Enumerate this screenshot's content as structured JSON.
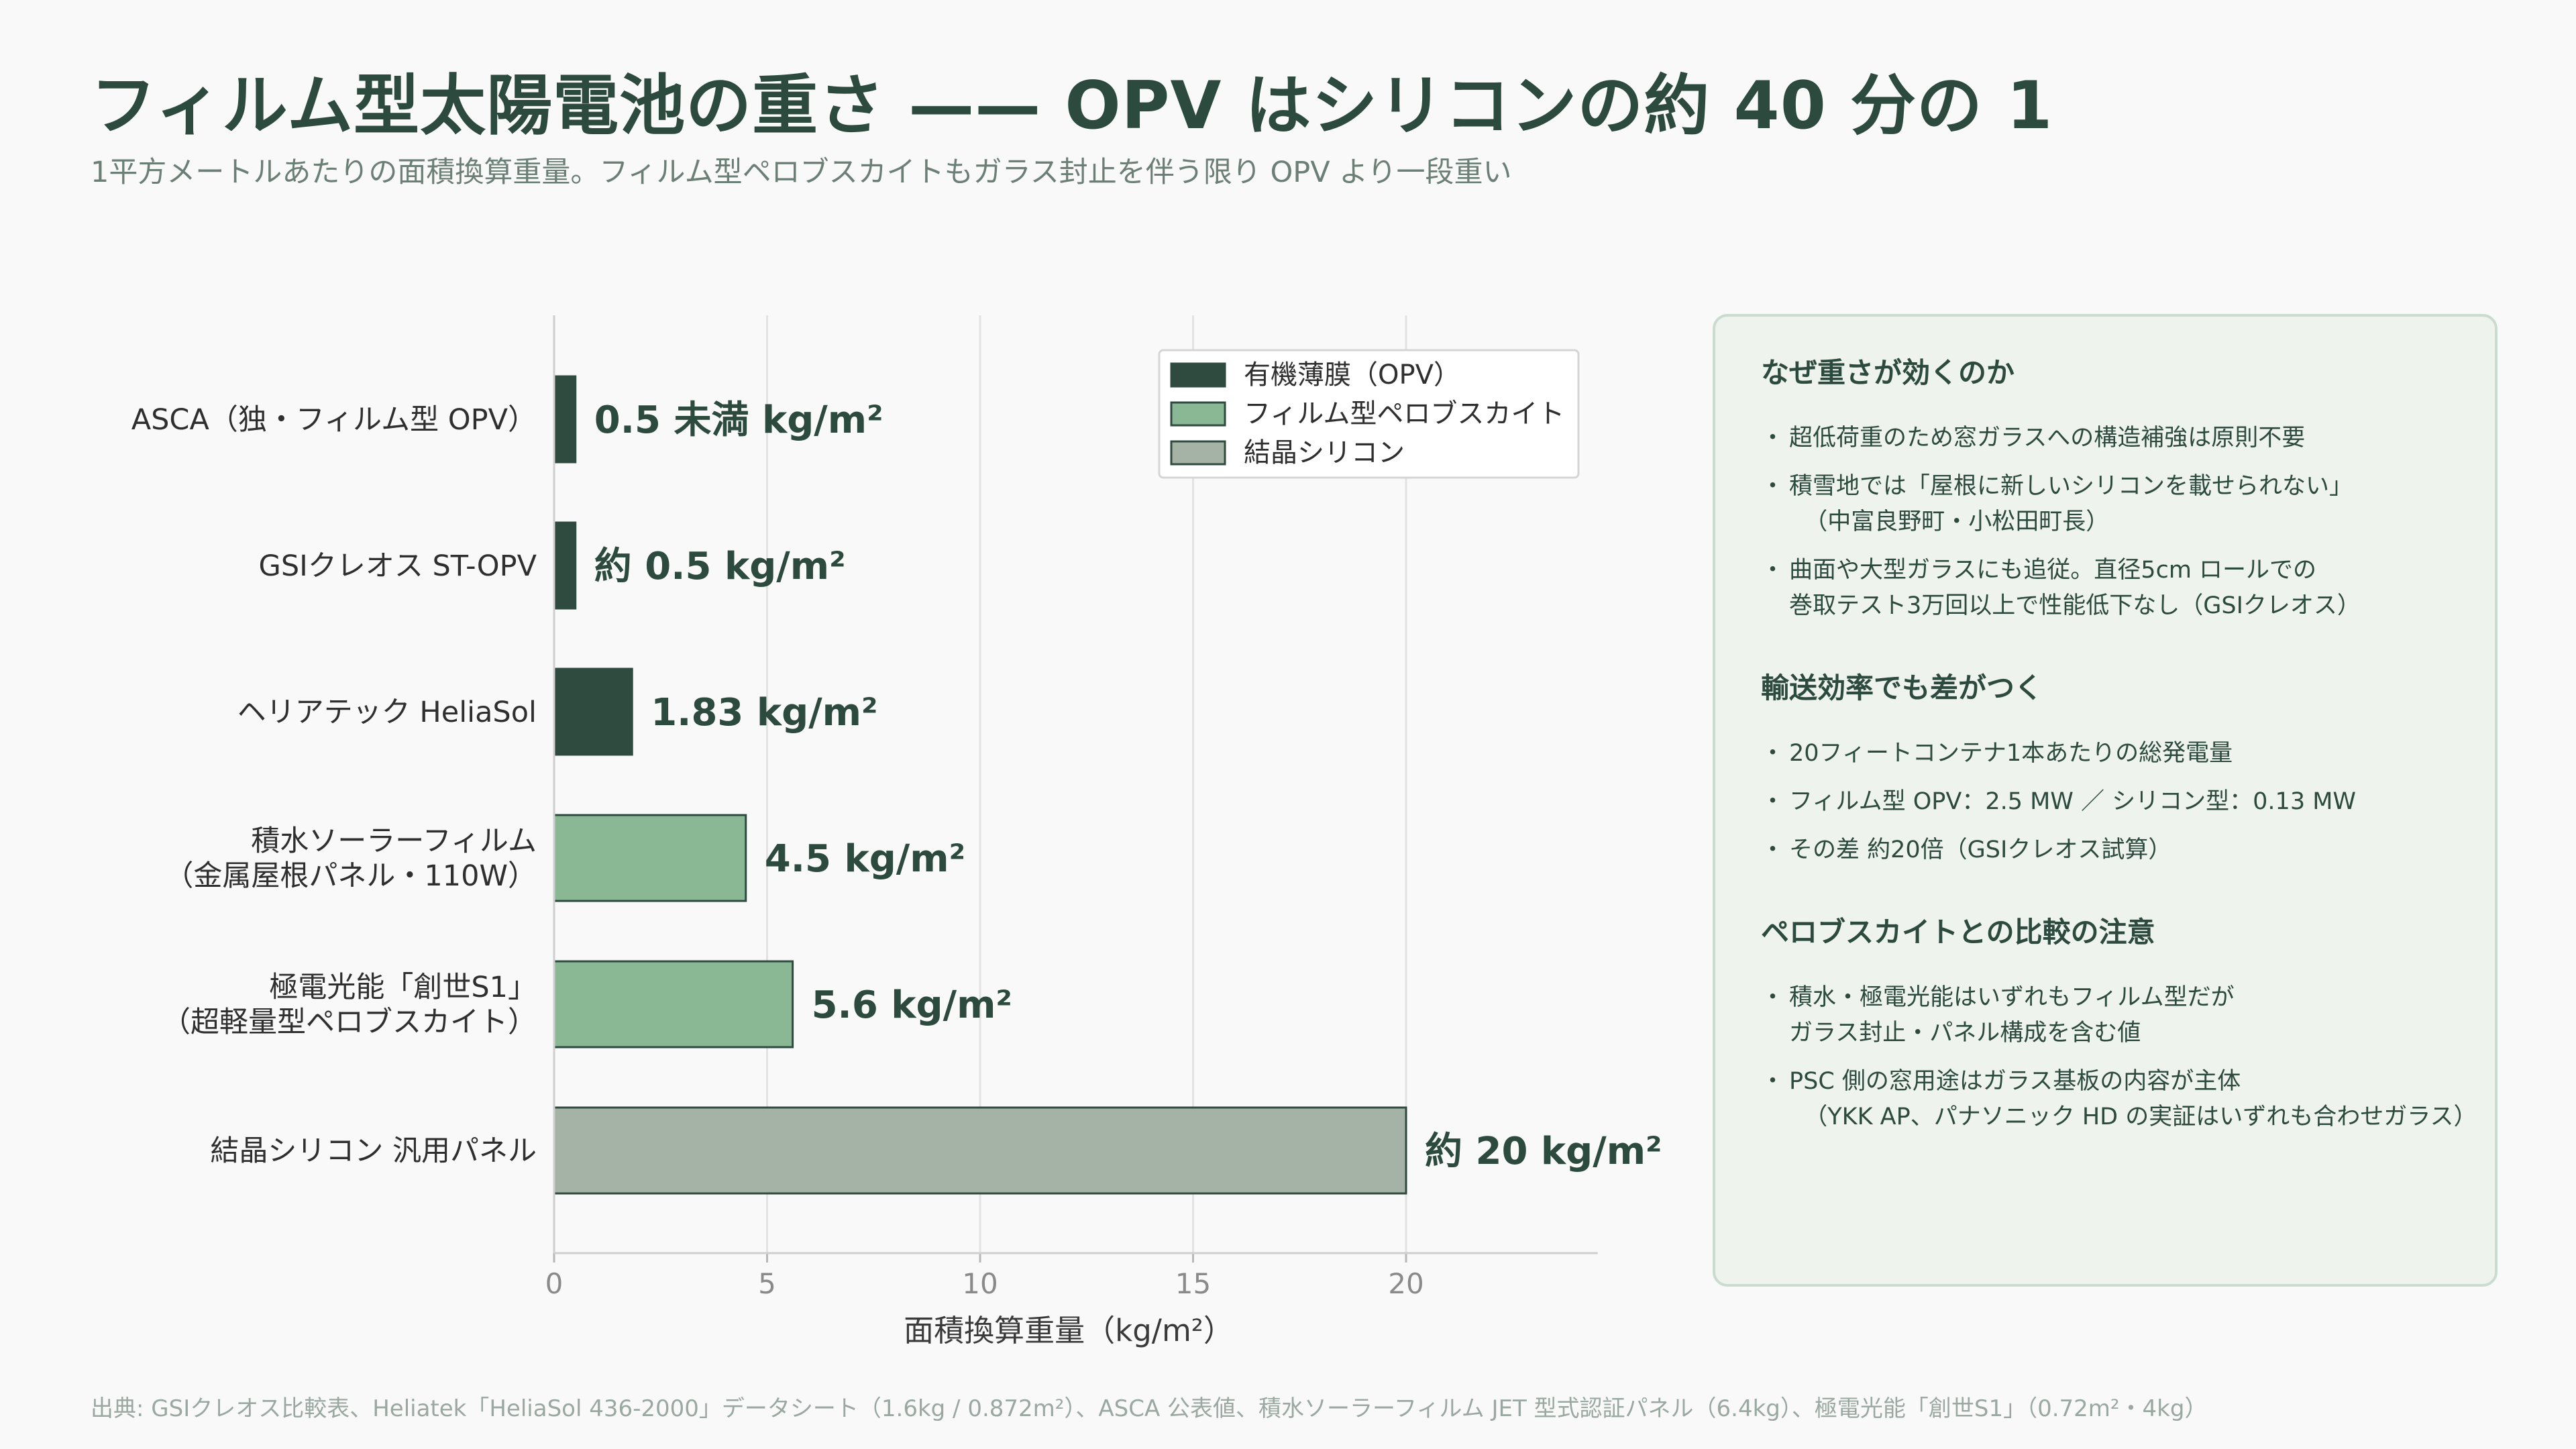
{
  "title": "フィルム型太陽電池の重さ —— OPV はシリコンの約 40 分の 1",
  "subtitle": "1平方メートルあたりの面積換算重量。フィルム型ペロブスカイトもガラス封止を伴う限り OPV より一段重い",
  "chart_data": {
    "type": "bar",
    "orientation": "horizontal",
    "categories": [
      "ASCA（独・フィルム型 OPV）",
      "GSIクレオス ST-OPV",
      "ヘリアテック HeliaSol",
      "積水ソーラーフィルム\n（金属屋根パネル・110W）",
      "極電光能「創世S1」\n（超軽量型ペロブスカイト）",
      "結晶シリコン 汎用パネル"
    ],
    "values": [
      0.5,
      0.5,
      1.83,
      4.5,
      5.6,
      20
    ],
    "groups": [
      "opv",
      "opv",
      "opv",
      "perovskite",
      "perovskite",
      "silicon"
    ],
    "data_labels": [
      "0.5 未満 kg/m²",
      "約 0.5 kg/m²",
      "1.83 kg/m²",
      "4.5 kg/m²",
      "5.6 kg/m²",
      "約 20 kg/m²"
    ],
    "xlabel": "面積換算重量（kg/m²）",
    "xlim": [
      0,
      24.5
    ],
    "xticks": [
      0,
      5,
      10,
      15,
      20
    ],
    "grid": true,
    "legend": {
      "position": "top-right",
      "entries": [
        {
          "key": "opv",
          "label": "有機薄膜（OPV）",
          "color": "#2f4a3e"
        },
        {
          "key": "perovskite",
          "label": "フィルム型ペロブスカイト",
          "color": "#8ab894"
        },
        {
          "key": "silicon",
          "label": "結晶シリコン",
          "color": "#a5b3a7"
        }
      ]
    }
  },
  "panel": {
    "sections": [
      {
        "heading": "なぜ重さが効くのか",
        "items": [
          "超低荷重のため窓ガラスへの構造補強は原則不要",
          "積雪地では「屋根に新しいシリコンを載せられない」\n  （中富良野町・小松田町長）",
          "曲面や大型ガラスにも追従。直径5cm ロールでの\n巻取テスト3万回以上で性能低下なし（GSIクレオス）"
        ]
      },
      {
        "heading": "輸送効率でも差がつく",
        "items": [
          "20フィートコンテナ1本あたりの総発電量",
          "フィルム型 OPV：2.5 MW ／ シリコン型：0.13 MW",
          "その差 約20倍（GSIクレオス試算）"
        ]
      },
      {
        "heading": "ペロブスカイトとの比較の注意",
        "items": [
          "積水・極電光能はいずれもフィルム型だが\nガラス封止・パネル構成を含む値",
          "PSC 側の窓用途はガラス基板の内容が主体\n  （YKK AP、パナソニック HD の実証はいずれも合わせガラス）"
        ]
      }
    ]
  },
  "source": "出典: GSIクレオス比較表、Heliatek「HeliaSol 436-2000」データシート（1.6kg / 0.872m²）、ASCA 公表値、積水ソーラーフィルム JET 型式認証パネル（6.4kg）、極電光能「創世S1」（0.72m²・4kg）"
}
